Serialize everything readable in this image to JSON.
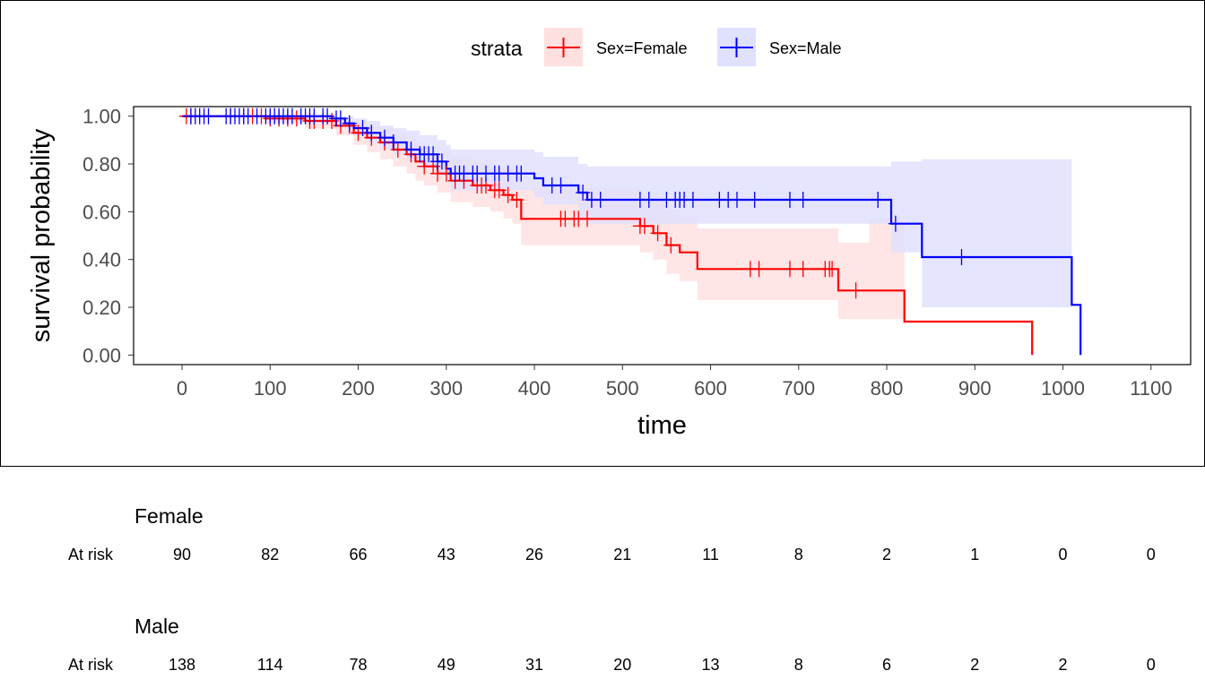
{
  "legend": {
    "title": "strata",
    "items": [
      {
        "label": "Sex=Female",
        "color": "#ff0000"
      },
      {
        "label": "Sex=Male",
        "color": "#0000ff"
      }
    ]
  },
  "chart_data": {
    "type": "line",
    "subtype": "kaplan-meier-step",
    "xlabel": "time",
    "ylabel": "survival probability",
    "xlim": [
      -55,
      1145
    ],
    "ylim": [
      -0.04,
      1.04
    ],
    "xticks": [
      0,
      100,
      200,
      300,
      400,
      500,
      600,
      700,
      800,
      900,
      1000,
      1100
    ],
    "yticks": [
      0.0,
      0.2,
      0.4,
      0.6,
      0.8,
      1.0
    ],
    "ytick_labels": [
      "0.00",
      "0.20",
      "0.40",
      "0.60",
      "0.80",
      "1.00"
    ],
    "xtick_labels": [
      "0",
      "100",
      "200",
      "300",
      "400",
      "500",
      "600",
      "700",
      "800",
      "900",
      "1000",
      "1100"
    ],
    "grid": false,
    "legend_position": "top",
    "series": [
      {
        "name": "Sex=Female",
        "color": "#ff0000",
        "band_color": "#ffe0e0",
        "steps": [
          [
            0,
            1.0
          ],
          [
            95,
            0.99
          ],
          [
            140,
            0.98
          ],
          [
            175,
            0.96
          ],
          [
            195,
            0.93
          ],
          [
            210,
            0.91
          ],
          [
            225,
            0.89
          ],
          [
            240,
            0.86
          ],
          [
            255,
            0.84
          ],
          [
            265,
            0.81
          ],
          [
            275,
            0.79
          ],
          [
            290,
            0.76
          ],
          [
            305,
            0.73
          ],
          [
            330,
            0.71
          ],
          [
            350,
            0.69
          ],
          [
            365,
            0.67
          ],
          [
            375,
            0.65
          ],
          [
            385,
            0.57
          ],
          [
            520,
            0.54
          ],
          [
            535,
            0.51
          ],
          [
            550,
            0.46
          ],
          [
            565,
            0.43
          ],
          [
            585,
            0.36
          ],
          [
            745,
            0.27
          ],
          [
            820,
            0.14
          ],
          [
            965,
            0.0
          ]
        ],
        "upper": [
          [
            0,
            1.0
          ],
          [
            95,
            1.0
          ],
          [
            140,
            1.0
          ],
          [
            175,
            0.99
          ],
          [
            195,
            0.98
          ],
          [
            210,
            0.96
          ],
          [
            225,
            0.95
          ],
          [
            240,
            0.93
          ],
          [
            255,
            0.91
          ],
          [
            265,
            0.89
          ],
          [
            275,
            0.87
          ],
          [
            290,
            0.85
          ],
          [
            305,
            0.83
          ],
          [
            330,
            0.81
          ],
          [
            350,
            0.79
          ],
          [
            365,
            0.78
          ],
          [
            375,
            0.76
          ],
          [
            385,
            0.7
          ],
          [
            520,
            0.67
          ],
          [
            535,
            0.65
          ],
          [
            550,
            0.61
          ],
          [
            565,
            0.58
          ],
          [
            585,
            0.53
          ],
          [
            745,
            0.47
          ],
          [
            780,
            0.57
          ],
          [
            820,
            0.57
          ]
        ],
        "lower": [
          [
            0,
            1.0
          ],
          [
            95,
            0.97
          ],
          [
            140,
            0.95
          ],
          [
            175,
            0.92
          ],
          [
            195,
            0.88
          ],
          [
            210,
            0.85
          ],
          [
            225,
            0.82
          ],
          [
            240,
            0.79
          ],
          [
            255,
            0.76
          ],
          [
            265,
            0.73
          ],
          [
            275,
            0.71
          ],
          [
            290,
            0.68
          ],
          [
            305,
            0.64
          ],
          [
            330,
            0.62
          ],
          [
            350,
            0.6
          ],
          [
            365,
            0.57
          ],
          [
            375,
            0.55
          ],
          [
            385,
            0.46
          ],
          [
            520,
            0.43
          ],
          [
            535,
            0.4
          ],
          [
            550,
            0.34
          ],
          [
            565,
            0.31
          ],
          [
            585,
            0.23
          ],
          [
            745,
            0.15
          ],
          [
            820,
            0.15
          ]
        ],
        "censor_times": [
          5,
          10,
          55,
          70,
          80,
          90,
          100,
          110,
          120,
          130,
          145,
          150,
          160,
          170,
          180,
          190,
          200,
          215,
          230,
          245,
          260,
          275,
          285,
          290,
          300,
          310,
          320,
          335,
          340,
          345,
          355,
          360,
          370,
          380,
          430,
          435,
          445,
          450,
          460,
          520,
          525,
          540,
          555,
          645,
          655,
          690,
          705,
          730,
          735,
          738,
          765
        ]
      },
      {
        "name": "Sex=Male",
        "color": "#0000ff",
        "band_color": "#e0e0ff",
        "steps": [
          [
            0,
            1.0
          ],
          [
            170,
            0.99
          ],
          [
            185,
            0.97
          ],
          [
            195,
            0.95
          ],
          [
            210,
            0.93
          ],
          [
            225,
            0.91
          ],
          [
            240,
            0.89
          ],
          [
            255,
            0.86
          ],
          [
            270,
            0.84
          ],
          [
            290,
            0.81
          ],
          [
            300,
            0.78
          ],
          [
            305,
            0.76
          ],
          [
            400,
            0.74
          ],
          [
            410,
            0.71
          ],
          [
            450,
            0.68
          ],
          [
            460,
            0.65
          ],
          [
            805,
            0.55
          ],
          [
            840,
            0.41
          ],
          [
            1010,
            0.21
          ],
          [
            1020,
            0.0
          ]
        ],
        "upper": [
          [
            0,
            1.0
          ],
          [
            170,
            1.0
          ],
          [
            185,
            1.0
          ],
          [
            195,
            0.99
          ],
          [
            210,
            0.98
          ],
          [
            225,
            0.96
          ],
          [
            240,
            0.95
          ],
          [
            255,
            0.94
          ],
          [
            270,
            0.92
          ],
          [
            290,
            0.9
          ],
          [
            300,
            0.88
          ],
          [
            305,
            0.86
          ],
          [
            400,
            0.85
          ],
          [
            410,
            0.83
          ],
          [
            450,
            0.8
          ],
          [
            460,
            0.79
          ],
          [
            805,
            0.81
          ],
          [
            840,
            0.82
          ],
          [
            900,
            0.82
          ],
          [
            1010,
            0.97
          ]
        ],
        "lower": [
          [
            0,
            1.0
          ],
          [
            170,
            0.98
          ],
          [
            185,
            0.95
          ],
          [
            195,
            0.92
          ],
          [
            210,
            0.89
          ],
          [
            225,
            0.86
          ],
          [
            240,
            0.84
          ],
          [
            255,
            0.81
          ],
          [
            270,
            0.78
          ],
          [
            290,
            0.75
          ],
          [
            300,
            0.72
          ],
          [
            305,
            0.69
          ],
          [
            400,
            0.66
          ],
          [
            410,
            0.63
          ],
          [
            450,
            0.57
          ],
          [
            460,
            0.55
          ],
          [
            805,
            0.43
          ],
          [
            840,
            0.2
          ],
          [
            1010,
            0.08
          ]
        ],
        "censor_times": [
          10,
          15,
          20,
          25,
          30,
          50,
          55,
          60,
          65,
          70,
          75,
          85,
          95,
          100,
          105,
          110,
          115,
          120,
          125,
          135,
          140,
          145,
          150,
          160,
          165,
          175,
          180,
          190,
          205,
          215,
          230,
          240,
          260,
          270,
          275,
          280,
          285,
          290,
          295,
          310,
          315,
          320,
          330,
          335,
          345,
          355,
          360,
          370,
          380,
          385,
          420,
          430,
          455,
          465,
          475,
          520,
          530,
          550,
          560,
          565,
          570,
          580,
          610,
          620,
          630,
          650,
          690,
          705,
          790,
          810,
          885
        ]
      }
    ]
  },
  "risk_table": {
    "row_label": "At risk",
    "groups": [
      {
        "name": "Female",
        "values": [
          "90",
          "82",
          "66",
          "43",
          "26",
          "21",
          "11",
          "8",
          "2",
          "1",
          "0",
          "0"
        ]
      },
      {
        "name": "Male",
        "values": [
          "138",
          "114",
          "78",
          "49",
          "31",
          "20",
          "13",
          "8",
          "6",
          "2",
          "2",
          "0"
        ]
      }
    ]
  }
}
